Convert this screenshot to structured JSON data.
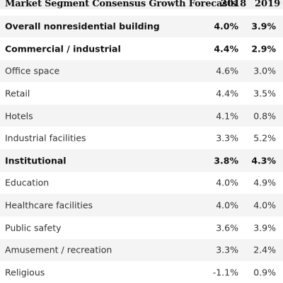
{
  "header": {
    "title": "Market  Segment Consensus Growth Forecasts",
    "col_2018": "2018",
    "col_2019": "2019"
  },
  "rows": [
    {
      "label": "Overall  nonresidential building",
      "v2018": "4.0%",
      "v2019": "3.9%",
      "bold": true
    },
    {
      "label": "Commercial  / industrial",
      "v2018": "4.4%",
      "v2019": "2.9%",
      "bold": true
    },
    {
      "label": "Office space",
      "v2018": "4.6%",
      "v2019": "3.0%",
      "bold": false
    },
    {
      "label": "Retail",
      "v2018": "4.4%",
      "v2019": "3.5%",
      "bold": false
    },
    {
      "label": "Hotels",
      "v2018": "4.1%",
      "v2019": "0.8%",
      "bold": false
    },
    {
      "label": "Industrial facilities",
      "v2018": "3.3%",
      "v2019": "5.2%",
      "bold": false
    },
    {
      "label": "Institutional",
      "v2018": "3.8%",
      "v2019": "4.3%",
      "bold": true
    },
    {
      "label": "Education",
      "v2018": "4.0%",
      "v2019": "4.9%",
      "bold": false
    },
    {
      "label": "Healthcare facilities",
      "v2018": "4.0%",
      "v2019": "4.0%",
      "bold": false
    },
    {
      "label": "Public safety",
      "v2018": "3.6%",
      "v2019": "3.9%",
      "bold": false
    },
    {
      "label": "Amusement  / recreation",
      "v2018": "3.3%",
      "v2019": "2.4%",
      "bold": false
    },
    {
      "label": "Religious",
      "v2018": "-1.1%",
      "v2019": "0.9%",
      "bold": false
    }
  ]
}
